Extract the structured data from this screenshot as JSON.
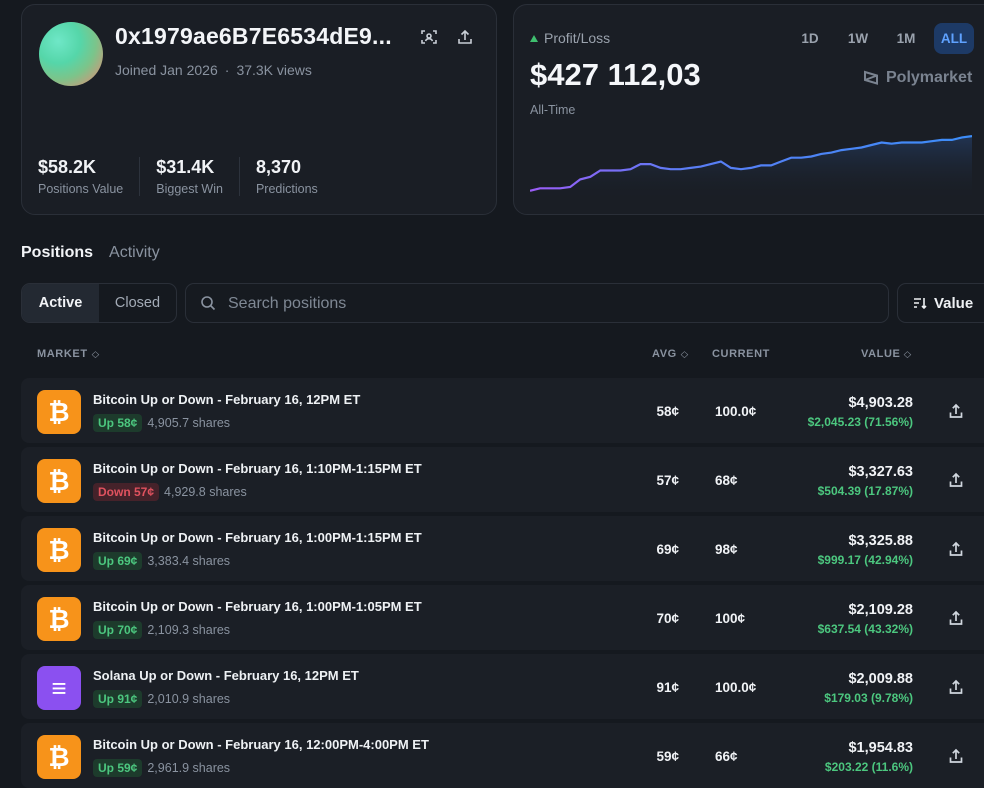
{
  "profile": {
    "name": "0x1979ae6B7E6534dE9...",
    "joined": "Joined Jan 2026",
    "views": "37.3K views",
    "stats": [
      {
        "value": "$58.2K",
        "label": "Positions Value"
      },
      {
        "value": "$31.4K",
        "label": "Biggest Win"
      },
      {
        "value": "8,370",
        "label": "Predictions"
      }
    ]
  },
  "pnl": {
    "label": "Profit/Loss",
    "value": "$427 112,03",
    "range": "All-Time",
    "periods": [
      "1D",
      "1W",
      "1M",
      "ALL"
    ],
    "active_period": "ALL",
    "brand": "Polymarket",
    "chart_data": {
      "type": "line",
      "x": [
        0,
        1,
        2,
        3,
        4,
        5,
        6,
        7,
        8,
        9,
        10,
        11,
        12,
        13,
        14,
        15,
        16,
        17,
        18,
        19,
        20,
        21,
        22,
        23,
        24,
        25,
        26,
        27,
        28,
        29,
        30,
        31,
        32,
        33,
        34,
        35,
        36,
        37,
        38,
        39,
        40,
        41,
        42,
        43,
        44
      ],
      "values": [
        8,
        10,
        10,
        10,
        11,
        17,
        19,
        24,
        24,
        24,
        25,
        29,
        29,
        26,
        25,
        25,
        26,
        27,
        29,
        31,
        26,
        25,
        26,
        28,
        28,
        31,
        34,
        34,
        35,
        37,
        38,
        40,
        41,
        42,
        44,
        46,
        45,
        46,
        46,
        46,
        47,
        48,
        48,
        50,
        51
      ],
      "ylim": [
        0,
        55
      ],
      "grid": false
    }
  },
  "tabs": {
    "positions": "Positions",
    "activity": "Activity"
  },
  "filter": {
    "active": "Active",
    "closed": "Closed"
  },
  "search": {
    "placeholder": "Search positions"
  },
  "sort": {
    "label": "Value"
  },
  "columns": {
    "market": "MARKET",
    "avg": "AVG",
    "current": "CURRENT",
    "value": "VALUE"
  },
  "rows": [
    {
      "coin": "btc",
      "title": "Bitcoin Up or Down - February 16, 12PM ET",
      "side": "up",
      "badge": "Up 58¢",
      "shares": "4,905.7 shares",
      "avg": "58¢",
      "current": "100.0¢",
      "value": "$4,903.28",
      "change": "$2,045.23 (71.56%)"
    },
    {
      "coin": "btc",
      "title": "Bitcoin Up or Down - February 16, 1:10PM-1:15PM ET",
      "side": "down",
      "badge": "Down 57¢",
      "shares": "4,929.8 shares",
      "avg": "57¢",
      "current": "68¢",
      "value": "$3,327.63",
      "change": "$504.39 (17.87%)"
    },
    {
      "coin": "btc",
      "title": "Bitcoin Up or Down - February 16, 1:00PM-1:15PM ET",
      "side": "up",
      "badge": "Up 69¢",
      "shares": "3,383.4 shares",
      "avg": "69¢",
      "current": "98¢",
      "value": "$3,325.88",
      "change": "$999.17 (42.94%)"
    },
    {
      "coin": "btc",
      "title": "Bitcoin Up or Down - February 16, 1:00PM-1:05PM ET",
      "side": "up",
      "badge": "Up 70¢",
      "shares": "2,109.3 shares",
      "avg": "70¢",
      "current": "100¢",
      "value": "$2,109.28",
      "change": "$637.54 (43.32%)"
    },
    {
      "coin": "sol",
      "title": "Solana Up or Down - February 16, 12PM ET",
      "side": "up",
      "badge": "Up 91¢",
      "shares": "2,010.9 shares",
      "avg": "91¢",
      "current": "100.0¢",
      "value": "$2,009.88",
      "change": "$179.03 (9.78%)"
    },
    {
      "coin": "btc",
      "title": "Bitcoin Up or Down - February 16, 12:00PM-4:00PM ET",
      "side": "up",
      "badge": "Up 59¢",
      "shares": "2,961.9 shares",
      "avg": "59¢",
      "current": "66¢",
      "value": "$1,954.83",
      "change": "$203.22 (11.6%)"
    }
  ],
  "colors": {
    "accent": "#5fa2ff",
    "positive": "#4cc77f",
    "negative": "#e0525f",
    "bitcoin": "#f7931a",
    "solana": "#8b50f0"
  }
}
